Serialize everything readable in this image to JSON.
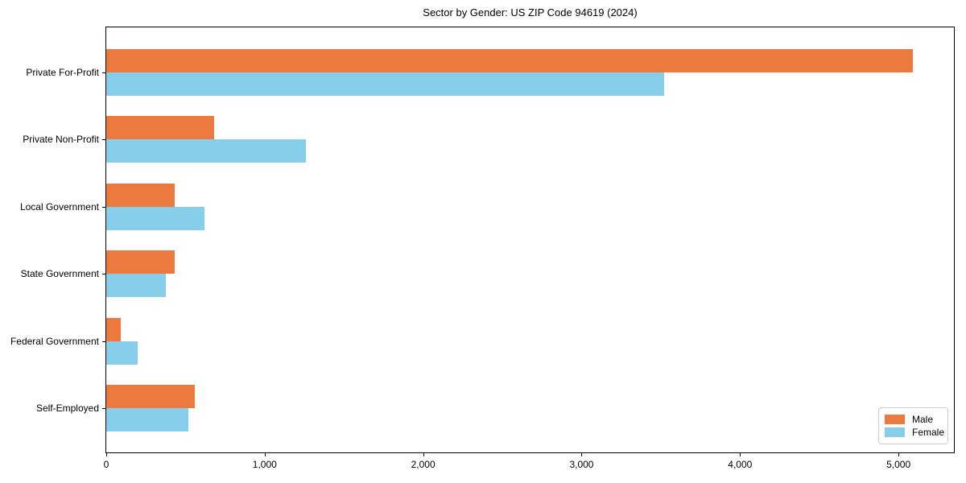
{
  "figure": {
    "background": "#ffffff"
  },
  "chart_data": {
    "type": "bar",
    "orientation": "horizontal",
    "title": "Sector by Gender: US ZIP Code 94619 (2024)",
    "categories": [
      "Private For-Profit",
      "Private Non-Profit",
      "Local Government",
      "State Government",
      "Federal Government",
      "Self-Employed"
    ],
    "series": [
      {
        "name": "Male",
        "color": "#EC7A3F",
        "values": [
          5090,
          680,
          430,
          430,
          90,
          560
        ]
      },
      {
        "name": "Female",
        "color": "#87CEEB",
        "values": [
          3520,
          1260,
          620,
          375,
          200,
          520
        ]
      }
    ],
    "xlabel": "",
    "ylabel": "",
    "xlim": [
      0,
      5350
    ],
    "x_ticks": [
      {
        "value": 0,
        "label": "0"
      },
      {
        "value": 1000,
        "label": "1,000"
      },
      {
        "value": 2000,
        "label": "2,000"
      },
      {
        "value": 3000,
        "label": "3,000"
      },
      {
        "value": 4000,
        "label": "4,000"
      },
      {
        "value": 5000,
        "label": "5,000"
      }
    ],
    "grid": false,
    "legend": {
      "position": "lower right",
      "entries": [
        "Male",
        "Female"
      ]
    }
  }
}
